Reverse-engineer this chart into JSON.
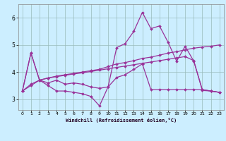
{
  "xlabel": "Windchill (Refroidissement éolien,°C)",
  "bg_color": "#cceeff",
  "line_color": "#993399",
  "grid_color": "#99bbbb",
  "xlim": [
    -0.5,
    23.5
  ],
  "ylim": [
    2.6,
    6.5
  ],
  "xticks": [
    0,
    1,
    2,
    3,
    4,
    5,
    6,
    7,
    8,
    9,
    10,
    11,
    12,
    13,
    14,
    15,
    16,
    17,
    18,
    19,
    20,
    21,
    22,
    23
  ],
  "yticks": [
    3,
    4,
    5,
    6
  ],
  "series": [
    {
      "x": [
        0,
        1,
        2,
        3,
        4,
        5,
        6,
        7,
        8,
        9,
        10,
        11,
        12,
        13,
        14,
        15,
        16,
        17,
        18,
        19,
        20,
        21,
        22,
        23
      ],
      "y": [
        3.3,
        4.7,
        3.7,
        3.5,
        3.3,
        3.3,
        3.25,
        3.2,
        3.1,
        2.75,
        3.45,
        4.9,
        5.05,
        5.5,
        6.2,
        5.6,
        5.7,
        5.1,
        4.4,
        4.95,
        4.4,
        3.35,
        3.3,
        3.25
      ]
    },
    {
      "x": [
        0,
        1,
        2,
        3,
        4,
        5,
        6,
        7,
        8,
        9,
        10,
        11,
        12,
        13,
        14,
        15,
        16,
        17,
        18,
        19,
        20,
        21,
        22,
        23
      ],
      "y": [
        3.3,
        4.7,
        3.7,
        3.6,
        3.7,
        3.55,
        3.6,
        3.55,
        3.45,
        3.4,
        3.45,
        3.8,
        3.9,
        4.1,
        4.3,
        3.35,
        3.35,
        3.35,
        3.35,
        3.35,
        3.35,
        3.35,
        3.3,
        3.25
      ]
    },
    {
      "x": [
        0,
        1,
        2,
        3,
        4,
        5,
        6,
        7,
        8,
        9,
        10,
        11,
        12,
        13,
        14,
        15,
        16,
        17,
        18,
        19,
        20,
        21,
        22,
        23
      ],
      "y": [
        3.3,
        3.55,
        3.7,
        3.78,
        3.85,
        3.9,
        3.95,
        4.0,
        4.05,
        4.1,
        4.2,
        4.3,
        4.35,
        4.42,
        4.5,
        4.55,
        4.62,
        4.7,
        4.75,
        4.82,
        4.88,
        4.92,
        4.95,
        5.0
      ]
    },
    {
      "x": [
        0,
        1,
        2,
        3,
        4,
        5,
        6,
        7,
        8,
        9,
        10,
        11,
        12,
        13,
        14,
        15,
        16,
        17,
        18,
        19,
        20,
        21,
        22,
        23
      ],
      "y": [
        3.3,
        3.5,
        3.7,
        3.78,
        3.83,
        3.88,
        3.93,
        3.97,
        4.02,
        4.07,
        4.12,
        4.17,
        4.22,
        4.27,
        4.32,
        4.37,
        4.42,
        4.47,
        4.52,
        4.57,
        4.42,
        3.32,
        3.3,
        3.25
      ]
    }
  ]
}
